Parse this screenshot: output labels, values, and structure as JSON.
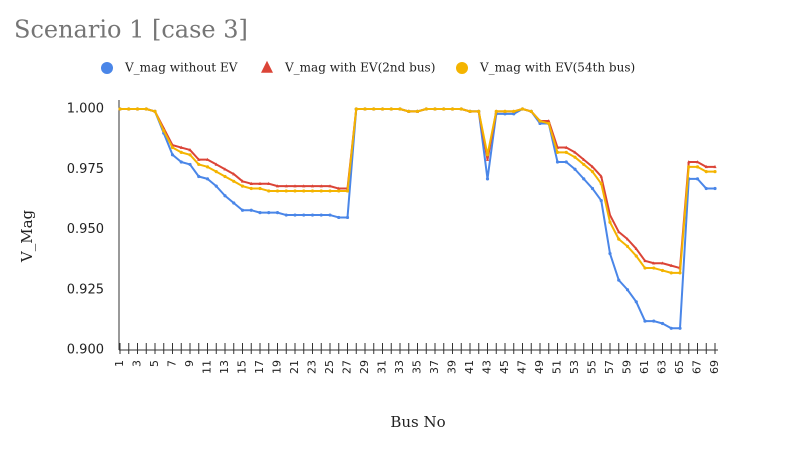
{
  "chart_data": {
    "type": "line",
    "title": "Scenario 1 [case 3]",
    "xlabel": "Bus No",
    "ylabel": "V_Mag",
    "legend": "top",
    "grid": false,
    "categories": [
      "1",
      null,
      "3",
      null,
      "5",
      null,
      "7",
      null,
      "9",
      null,
      "11",
      null,
      "13",
      null,
      "15",
      null,
      "17",
      null,
      "19",
      null,
      "21",
      null,
      "23",
      null,
      "25",
      null,
      "27",
      null,
      "29",
      null,
      "31",
      null,
      "33",
      null,
      "35",
      null,
      "37",
      null,
      "39",
      null,
      "41",
      null,
      "43",
      null,
      "45",
      null,
      "47",
      null,
      "49",
      null,
      "51",
      null,
      "53",
      null,
      "55",
      null,
      "57",
      null,
      "59",
      null,
      "61",
      null,
      "63",
      null,
      "65",
      null,
      "67",
      null,
      "69"
    ],
    "ylim": [
      0.9,
      1.0
    ],
    "yticks": [
      {
        "value": 0.9,
        "label": "0.900"
      },
      {
        "value": 0.925,
        "label": "0.925"
      },
      {
        "value": 0.95,
        "label": "0.950"
      },
      {
        "value": 0.975,
        "label": "0.975"
      },
      {
        "value": 1.0,
        "label": "1.000"
      }
    ],
    "series": [
      {
        "name": "V_mag without EV",
        "color": "#4a86e8",
        "marker": "circle",
        "values": [
          1.0,
          1.0,
          1.0,
          1.0,
          0.999,
          0.99,
          0.981,
          0.978,
          0.977,
          0.972,
          0.971,
          0.968,
          0.964,
          0.961,
          0.958,
          0.958,
          0.957,
          0.957,
          0.957,
          0.956,
          0.956,
          0.956,
          0.956,
          0.956,
          0.956,
          0.955,
          0.955,
          1.0,
          1.0,
          1.0,
          1.0,
          1.0,
          1.0,
          0.999,
          0.999,
          1.0,
          1.0,
          1.0,
          1.0,
          1.0,
          0.999,
          0.999,
          0.971,
          0.998,
          0.998,
          0.998,
          1.0,
          0.999,
          0.994,
          0.994,
          0.978,
          0.978,
          0.975,
          0.971,
          0.967,
          0.962,
          0.94,
          0.929,
          0.925,
          0.92,
          0.912,
          0.912,
          0.911,
          0.909,
          0.909,
          0.971,
          0.971,
          0.967,
          0.967
        ]
      },
      {
        "name": "V_mag with EV(2nd bus)",
        "color": "#db4437",
        "marker": "triangle",
        "values": [
          1.0,
          1.0,
          1.0,
          1.0,
          0.999,
          0.992,
          0.985,
          0.984,
          0.983,
          0.979,
          0.979,
          0.977,
          0.975,
          0.973,
          0.97,
          0.969,
          0.969,
          0.969,
          0.968,
          0.968,
          0.968,
          0.968,
          0.968,
          0.968,
          0.968,
          0.967,
          0.967,
          1.0,
          1.0,
          1.0,
          1.0,
          1.0,
          1.0,
          0.999,
          0.999,
          1.0,
          1.0,
          1.0,
          1.0,
          1.0,
          0.999,
          0.999,
          0.979,
          0.999,
          0.999,
          0.999,
          1.0,
          0.999,
          0.995,
          0.995,
          0.984,
          0.984,
          0.982,
          0.979,
          0.976,
          0.972,
          0.956,
          0.949,
          0.946,
          0.942,
          0.937,
          0.936,
          0.936,
          0.935,
          0.934,
          0.978,
          0.978,
          0.976,
          0.976
        ]
      },
      {
        "name": "V_mag with EV(54th bus)",
        "color": "#f4b400",
        "marker": "circle",
        "values": [
          1.0,
          1.0,
          1.0,
          1.0,
          0.999,
          0.991,
          0.984,
          0.982,
          0.981,
          0.977,
          0.976,
          0.974,
          0.972,
          0.97,
          0.968,
          0.967,
          0.967,
          0.966,
          0.966,
          0.966,
          0.966,
          0.966,
          0.966,
          0.966,
          0.966,
          0.966,
          0.966,
          1.0,
          1.0,
          1.0,
          1.0,
          1.0,
          1.0,
          0.999,
          0.999,
          1.0,
          1.0,
          1.0,
          1.0,
          1.0,
          0.999,
          0.999,
          0.981,
          0.999,
          0.999,
          0.999,
          1.0,
          0.999,
          0.995,
          0.994,
          0.982,
          0.982,
          0.98,
          0.977,
          0.974,
          0.969,
          0.953,
          0.946,
          0.943,
          0.939,
          0.934,
          0.934,
          0.933,
          0.932,
          0.932,
          0.976,
          0.976,
          0.974,
          0.974
        ]
      }
    ]
  }
}
